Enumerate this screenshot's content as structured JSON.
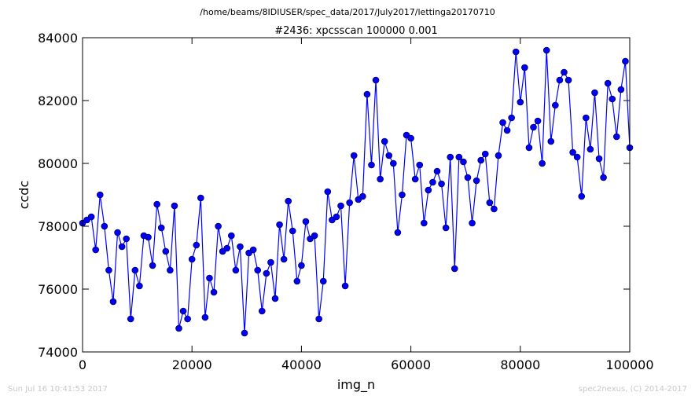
{
  "chart_data": {
    "type": "line",
    "header": "/home/beams/8IDIUSER/spec_data/2017/July2017/lettinga20170710",
    "title": "#2436: xpcsscan 100000 0.001",
    "xlabel": "img_n",
    "ylabel": "ccdc",
    "footer_left": "Sun Jul 16 10:41:53 2017",
    "footer_right": "spec2nexus, (C) 2014-2017",
    "xlim": [
      0,
      100000
    ],
    "ylim": [
      74000,
      84000
    ],
    "xticks": [
      0,
      20000,
      40000,
      60000,
      80000,
      100000
    ],
    "yticks": [
      74000,
      76000,
      78000,
      80000,
      82000,
      84000
    ],
    "grid": false,
    "x": [
      0,
      800,
      1600,
      2400,
      3200,
      4000,
      4800,
      5600,
      6400,
      7200,
      8000,
      8800,
      9600,
      10400,
      11200,
      12000,
      12800,
      13600,
      14400,
      15200,
      16000,
      16800,
      17600,
      18400,
      19200,
      20000,
      20800,
      21600,
      22400,
      23200,
      24000,
      24800,
      25600,
      26400,
      27200,
      28000,
      28800,
      29600,
      30400,
      31200,
      32000,
      32800,
      33600,
      34400,
      35200,
      36000,
      36800,
      37600,
      38400,
      39200,
      40000,
      40800,
      41600,
      42400,
      43200,
      44000,
      44800,
      45600,
      46400,
      47200,
      48000,
      48800,
      49600,
      50400,
      51200,
      52000,
      52800,
      53600,
      54400,
      55200,
      56000,
      56800,
      57600,
      58400,
      59200,
      60000,
      60800,
      61600,
      62400,
      63200,
      64000,
      64800,
      65600,
      66400,
      67200,
      68000,
      68800,
      69600,
      70400,
      71200,
      72000,
      72800,
      73600,
      74400,
      75200,
      76000,
      76800,
      77600,
      78400,
      79200,
      80000,
      80800,
      81600,
      82400,
      83200,
      84000,
      84800,
      85600,
      86400,
      87200,
      88000,
      88800,
      89600,
      90400,
      91200,
      92000,
      92800,
      93600,
      94400,
      95200,
      96000,
      96800,
      97600,
      98400,
      99200,
      100000
    ],
    "series": [
      {
        "name": "ccdc",
        "color": "#0000ff",
        "values": [
          78100,
          78200,
          78300,
          77250,
          79000,
          78000,
          76600,
          75600,
          77800,
          77350,
          77600,
          75050,
          76600,
          76100,
          77700,
          77650,
          76750,
          78700,
          77950,
          77200,
          76600,
          78650,
          74750,
          75300,
          75050,
          76950,
          77400,
          78900,
          75100,
          76350,
          75900,
          78000,
          77200,
          77300,
          77700,
          76600,
          77350,
          74600,
          77150,
          77250,
          76600,
          75300,
          76500,
          76850,
          75700,
          78050,
          76950,
          78800,
          77850,
          76250,
          76750,
          78150,
          77600,
          77700,
          75050,
          76250,
          79100,
          78200,
          78300,
          78650,
          76100,
          78750,
          80250,
          78850,
          78950,
          82200,
          79950,
          82650,
          79500,
          80700,
          80250,
          80000,
          77800,
          79000,
          80900,
          80800,
          79500,
          79950,
          78100,
          79150,
          79400,
          79750,
          79350,
          77950,
          80200,
          76650,
          80200,
          80050,
          79550,
          78100,
          79450,
          80100,
          80300,
          78750,
          78550,
          80250,
          81300,
          81050,
          81450,
          83550,
          81950,
          83050,
          80500,
          81150,
          81350,
          80000,
          83600,
          80700,
          81850,
          82650,
          82900,
          82650,
          80350,
          80200,
          78950,
          81450,
          80450,
          82250,
          80150,
          79550,
          82550,
          82050,
          80850,
          82350,
          83250,
          80500
        ]
      }
    ]
  }
}
